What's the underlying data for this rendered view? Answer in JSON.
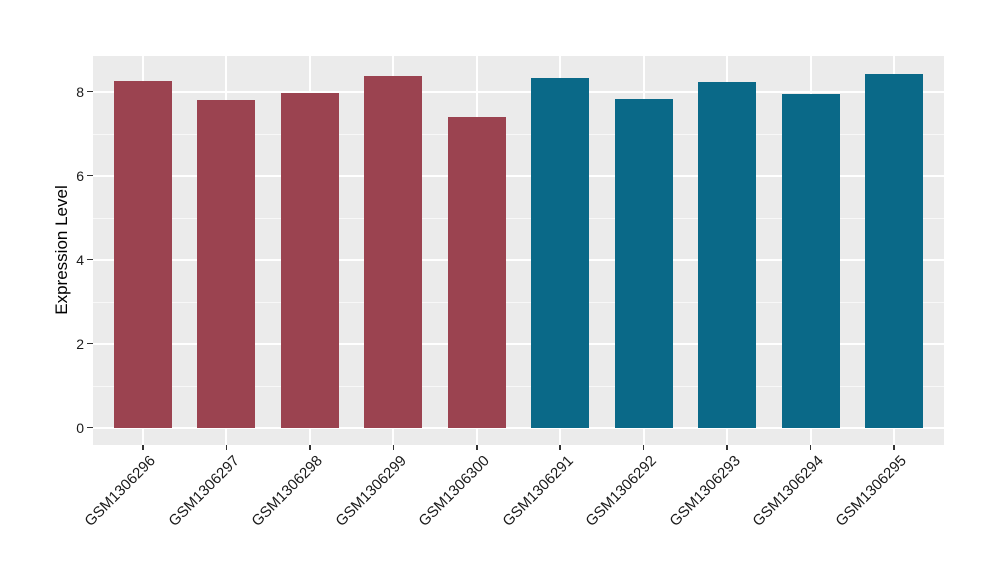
{
  "chart_data": {
    "type": "bar",
    "title": "",
    "xlabel": "",
    "ylabel": "Expression Level",
    "categories": [
      "GSM1306296",
      "GSM1306297",
      "GSM1306298",
      "GSM1306299",
      "GSM1306300",
      "GSM1306291",
      "GSM1306292",
      "GSM1306293",
      "GSM1306294",
      "GSM1306295"
    ],
    "values": [
      8.25,
      7.8,
      7.97,
      8.38,
      7.39,
      8.32,
      7.82,
      8.22,
      7.94,
      8.42
    ],
    "bar_colors": [
      "#9B4350",
      "#9B4350",
      "#9B4350",
      "#9B4350",
      "#9B4350",
      "#0A6988",
      "#0A6988",
      "#0A6988",
      "#0A6988",
      "#0A6988"
    ],
    "yticks": [
      0,
      2,
      4,
      6,
      8
    ],
    "minor_yticks": [
      1,
      3,
      5,
      7
    ],
    "ylim": [
      -0.41,
      8.85
    ],
    "x_tick_rotation_deg": 45,
    "grid": {
      "horizontal_major": true,
      "horizontal_minor": true,
      "vertical_major_at_category_centers": true
    },
    "legend": "none",
    "panel_background": "#EBEBEB",
    "gridline_color": "#FFFFFF",
    "tick_color": "#333333",
    "text_color": "#1A1A1A"
  }
}
